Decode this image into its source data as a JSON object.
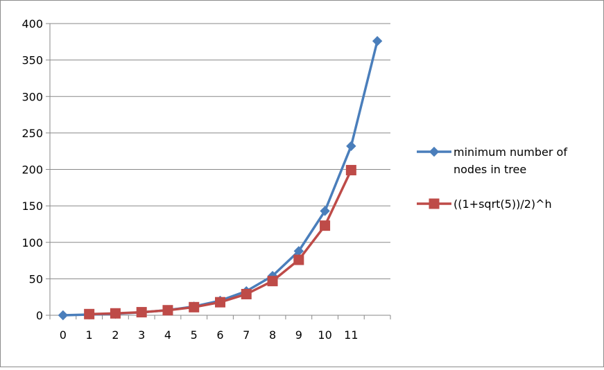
{
  "chart_data": {
    "type": "line",
    "title": "",
    "xlabel": "",
    "ylabel": "",
    "categories": [
      "0",
      "1",
      "2",
      "3",
      "4",
      "5",
      "6",
      "7",
      "8",
      "9",
      "10",
      "11",
      ""
    ],
    "ylim": [
      0,
      400
    ],
    "y_ticks": [
      "0",
      "50",
      "100",
      "150",
      "200",
      "250",
      "300",
      "350",
      "400"
    ],
    "grid": "horizontal",
    "legend_position": "right",
    "series": [
      {
        "name": "minimum number of nodes in tree",
        "name_lines": [
          "minimum number of",
          "nodes in tree"
        ],
        "color": "#4a7ebb",
        "marker": "diamond",
        "values": [
          0,
          1,
          2,
          4,
          7,
          12,
          20,
          33,
          54,
          88,
          143,
          232,
          376
        ]
      },
      {
        "name": "((1+sqrt(5))/2)^h",
        "name_lines": [
          "((1+sqrt(5))/2)^h"
        ],
        "color": "#be4b48",
        "marker": "square",
        "values": [
          null,
          1.6,
          2.6,
          4.2,
          6.9,
          11.1,
          17.9,
          29.0,
          46.9,
          76.0,
          122.9,
          199.0,
          null
        ]
      }
    ]
  }
}
